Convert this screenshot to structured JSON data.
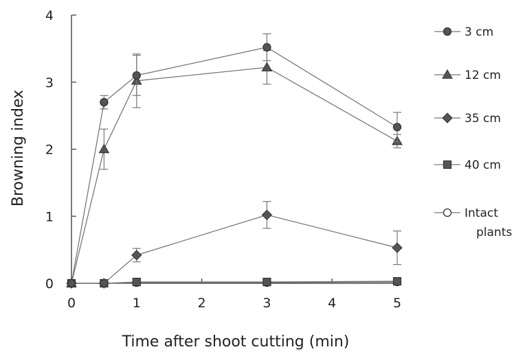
{
  "chart_data": {
    "type": "line",
    "xlabel": "Time after shoot cutting (min)",
    "ylabel": "Browning index",
    "xlim": [
      0,
      5
    ],
    "ylim": [
      0,
      4
    ],
    "x_ticks": [
      "0",
      "1",
      "2",
      "3",
      "4",
      "5"
    ],
    "y_ticks": [
      "0",
      "1",
      "2",
      "3",
      "4"
    ],
    "grid": false,
    "legend_position": "right",
    "x": [
      0,
      0.5,
      1,
      3,
      5
    ],
    "series": [
      {
        "name": "3 cm",
        "marker": "circle",
        "fill": "#555555",
        "values": [
          0,
          2.7,
          3.1,
          3.52,
          2.33
        ],
        "err": [
          0,
          0.1,
          0.3,
          0.2,
          0.22
        ]
      },
      {
        "name": "12 cm",
        "marker": "triangle",
        "fill": "#555555",
        "values": [
          0,
          2.0,
          3.02,
          3.22,
          2.12
        ],
        "err": [
          0,
          0.3,
          0.4,
          0.25,
          0.1
        ]
      },
      {
        "name": "35 cm",
        "marker": "diamond",
        "fill": "#555555",
        "values": [
          0,
          0,
          0.42,
          1.02,
          0.53
        ],
        "err": [
          0,
          0,
          0.1,
          0.2,
          0.25
        ]
      },
      {
        "name": "40 cm",
        "marker": "square",
        "fill": "#555555",
        "values": [
          0,
          0,
          0.02,
          0.02,
          0.03
        ],
        "err": [
          0,
          0,
          0,
          0,
          0
        ]
      },
      {
        "name": "Intact plants",
        "label_lines": [
          "Intact",
          "plants"
        ],
        "marker": "circle",
        "fill": "#ffffff",
        "values": [
          0,
          0,
          0.01,
          0.01,
          0.02
        ],
        "err": [
          0,
          0,
          0,
          0,
          0
        ]
      }
    ],
    "colors": {
      "line": "#777777",
      "marker": "#555555",
      "axis": "#333333"
    }
  }
}
